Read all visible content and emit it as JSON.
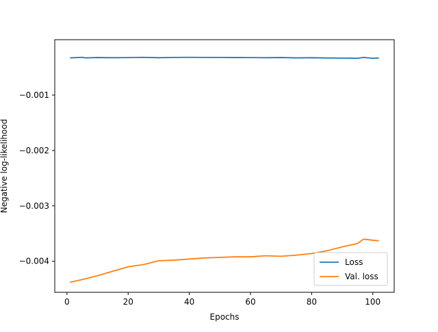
{
  "chart_data": {
    "type": "line",
    "xlabel": "Epochs",
    "ylabel": "Negative log-likelihood",
    "xlim": [
      -4,
      107
    ],
    "ylim": [
      -0.00456,
      -0.0
    ],
    "xticks": [
      0,
      20,
      40,
      60,
      80,
      100
    ],
    "xtick_labels": [
      "0",
      "20",
      "40",
      "60",
      "80",
      "100"
    ],
    "yticks": [
      -0.001,
      -0.002,
      -0.003,
      -0.004
    ],
    "ytick_labels": [
      "−0.001",
      "−0.002",
      "−0.003",
      "−0.004"
    ],
    "grid": false,
    "legend_position": "lower-right",
    "series": [
      {
        "name": "Loss",
        "color": "#1f77b4",
        "x": [
          1,
          5,
          6,
          10,
          15,
          20,
          25,
          30,
          35,
          40,
          45,
          50,
          55,
          60,
          65,
          70,
          75,
          80,
          85,
          90,
          95,
          97,
          100,
          102
        ],
        "y": [
          -0.000328,
          -0.000318,
          -0.000328,
          -0.000322,
          -0.000325,
          -0.000323,
          -0.000318,
          -0.000325,
          -0.00032,
          -0.000318,
          -0.00032,
          -0.00032,
          -0.000322,
          -0.000323,
          -0.000325,
          -0.000322,
          -0.000328,
          -0.000325,
          -0.00033,
          -0.000332,
          -0.000335,
          -0.00032,
          -0.000335,
          -0.00033
        ]
      },
      {
        "name": "Val. loss",
        "color": "#ff7f0e",
        "x": [
          1,
          5,
          10,
          15,
          20,
          25,
          30,
          35,
          40,
          45,
          50,
          55,
          60,
          65,
          70,
          75,
          80,
          85,
          90,
          95,
          97,
          100,
          102
        ],
        "y": [
          -0.00438,
          -0.00433,
          -0.00426,
          -0.00418,
          -0.0041,
          -0.00406,
          -0.00399,
          -0.00398,
          -0.00396,
          -0.00394,
          -0.00393,
          -0.00392,
          -0.00392,
          -0.0039,
          -0.00391,
          -0.00389,
          -0.00386,
          -0.00381,
          -0.00374,
          -0.00368,
          -0.0036,
          -0.00362,
          -0.00363
        ]
      }
    ]
  }
}
